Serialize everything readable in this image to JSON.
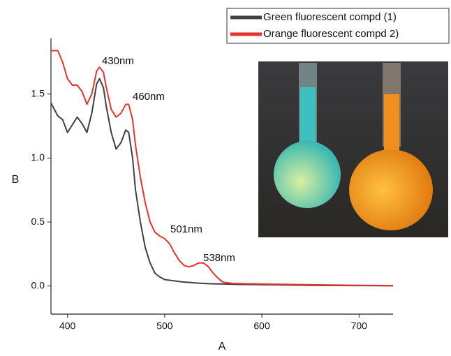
{
  "chart_data": {
    "type": "line",
    "x_label": "A",
    "y_label": "B",
    "x": [
      383,
      390,
      395,
      400,
      405,
      410,
      415,
      420,
      425,
      430,
      433,
      437,
      440,
      445,
      450,
      455,
      460,
      463,
      467,
      470,
      475,
      480,
      485,
      490,
      495,
      500,
      505,
      510,
      515,
      520,
      525,
      530,
      535,
      540,
      545,
      550,
      555,
      560,
      570,
      580,
      600,
      650,
      700,
      735
    ],
    "series": [
      {
        "name": "Green fluorescent compd (1)",
        "color": "#404040",
        "values": [
          1.43,
          1.33,
          1.3,
          1.2,
          1.26,
          1.32,
          1.27,
          1.2,
          1.35,
          1.58,
          1.62,
          1.55,
          1.4,
          1.2,
          1.07,
          1.12,
          1.22,
          1.2,
          1.0,
          0.75,
          0.5,
          0.3,
          0.18,
          0.1,
          0.07,
          0.05,
          0.045,
          0.04,
          0.035,
          0.03,
          0.028,
          0.025,
          0.022,
          0.02,
          0.018,
          0.017,
          0.016,
          0.015,
          0.013,
          0.012,
          0.01,
          0.005,
          0.003,
          0.002
        ]
      },
      {
        "name": "Orange fluorescent compd 2)",
        "color": "#e8322d",
        "values": [
          1.84,
          1.84,
          1.75,
          1.62,
          1.57,
          1.57,
          1.52,
          1.42,
          1.5,
          1.68,
          1.71,
          1.67,
          1.55,
          1.38,
          1.32,
          1.35,
          1.42,
          1.42,
          1.3,
          1.1,
          0.85,
          0.65,
          0.5,
          0.42,
          0.39,
          0.37,
          0.33,
          0.26,
          0.2,
          0.16,
          0.15,
          0.16,
          0.18,
          0.18,
          0.15,
          0.1,
          0.06,
          0.03,
          0.02,
          0.018,
          0.015,
          0.01,
          0.005,
          0.003
        ]
      }
    ],
    "annotations": [
      "430nm",
      "460nm",
      "501nm",
      "538nm"
    ],
    "xlim": [
      383,
      735
    ],
    "xticks": [
      400,
      500,
      600,
      700
    ],
    "ylim": [
      -0.22,
      2.17
    ],
    "yticks": [
      {
        "value": 0,
        "label": "0.0"
      },
      0.5,
      {
        "value": 1,
        "label": "1.0"
      },
      1.5
    ],
    "legend": "upper right"
  }
}
